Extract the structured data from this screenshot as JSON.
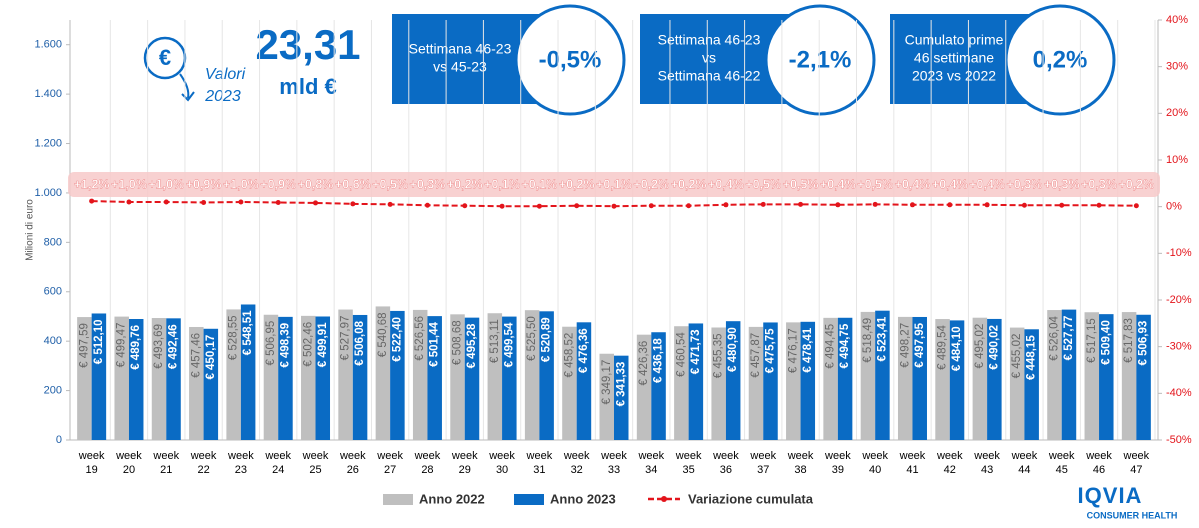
{
  "chart_data": {
    "type": "bar_line",
    "categories": [
      "week 19",
      "week 20",
      "week 21",
      "week 22",
      "week 23",
      "week 24",
      "week 25",
      "week 26",
      "week 27",
      "week 28",
      "week 29",
      "week 30",
      "week 31",
      "week 32",
      "week 33",
      "week 34",
      "week 35",
      "week 36",
      "week 37",
      "week 38",
      "week 39",
      "week 40",
      "week 41",
      "week 42",
      "week 43",
      "week 44",
      "week 45",
      "week 46",
      "week 47"
    ],
    "y_label": "Milioni di euro",
    "ylim": [
      0,
      1700
    ],
    "yticks": [
      0,
      200,
      400,
      600,
      800,
      {
        "value": 1000,
        "label": "1.000"
      },
      {
        "value": 1200,
        "label": "1.200"
      },
      {
        "value": 1400,
        "label": "1.400"
      },
      {
        "value": 1600,
        "label": "1.600"
      }
    ],
    "y2lim": [
      -50,
      40
    ],
    "y2ticks": [
      {
        "value": -50,
        "label": "-50%"
      },
      {
        "value": -40,
        "label": "-40%"
      },
      {
        "value": -30,
        "label": "-30%"
      },
      {
        "value": -20,
        "label": "-20%"
      },
      {
        "value": -10,
        "label": "-10%"
      },
      {
        "value": 0,
        "label": "0%"
      },
      {
        "value": 10,
        "label": "10%"
      },
      {
        "value": 20,
        "label": "20%"
      },
      {
        "value": 30,
        "label": "30%"
      },
      {
        "value": 40,
        "label": "40%"
      }
    ],
    "legend": "bottom",
    "series": [
      {
        "name": "Anno 2022",
        "color": "#bfbfbf",
        "kind": "bar",
        "values": [
          497.59,
          499.47,
          493.69,
          457.46,
          528.55,
          506.95,
          502.46,
          527.97,
          540.68,
          526.56,
          508.68,
          513.11,
          525.5,
          458.52,
          349.17,
          426.36,
          460.54,
          455.35,
          457.87,
          476.17,
          494.45,
          518.49,
          498.27,
          489.54,
          495.02,
          455.02,
          526.04,
          517.15,
          517.83
        ],
        "value_labels": [
          "€ 497,59",
          "€ 499,47",
          "€ 493,69",
          "€ 457,46",
          "€ 528,55",
          "€ 506,95",
          "€ 502,46",
          "€ 527,97",
          "€ 540,68",
          "€ 526,56",
          "€ 508,68",
          "€ 513,11",
          "€ 525,50",
          "€ 458,52",
          "€ 349,17",
          "€ 426,36",
          "€ 460,54",
          "€ 455,35",
          "€ 457,87",
          "€ 476,17",
          "€ 494,45",
          "€ 518,49",
          "€ 498,27",
          "€ 489,54",
          "€ 495,02",
          "€ 455,02",
          "€ 526,04",
          "€ 517,15",
          "€ 517,83"
        ]
      },
      {
        "name": "Anno 2023",
        "color": "#0a6bc4",
        "kind": "bar",
        "values": [
          512.1,
          489.76,
          492.46,
          450.17,
          548.51,
          498.39,
          499.91,
          506.08,
          522.4,
          501.44,
          495.28,
          499.54,
          520.89,
          476.36,
          341.33,
          436.18,
          471.73,
          480.9,
          475.75,
          478.41,
          494.75,
          523.41,
          497.95,
          484.1,
          490.02,
          448.15,
          527.77,
          509.4,
          506.93
        ],
        "value_labels": [
          "€ 512,10",
          "€ 489,76",
          "€ 492,46",
          "€ 450,17",
          "€ 548,51",
          "€ 498,39",
          "€ 499,91",
          "€ 506,08",
          "€ 522,40",
          "€ 501,44",
          "€ 495,28",
          "€ 499,54",
          "€ 520,89",
          "€ 476,36",
          "€ 341,33",
          "€ 436,18",
          "€ 471,73",
          "€ 480,90",
          "€ 475,75",
          "€ 478,41",
          "€ 494,75",
          "€ 523,41",
          "€ 497,95",
          "€ 484,10",
          "€ 490,02",
          "€ 448,15",
          "€ 527,77",
          "€ 509,40",
          "€ 506,93"
        ]
      },
      {
        "name": "Variazione cumulata",
        "color": "#e3141b",
        "kind": "line",
        "axis": "y2",
        "values": [
          1.2,
          1.0,
          1.0,
          0.9,
          1.0,
          0.9,
          0.8,
          0.6,
          0.5,
          0.3,
          0.2,
          0.1,
          0.1,
          0.2,
          0.1,
          0.2,
          0.2,
          0.4,
          0.5,
          0.5,
          0.4,
          0.5,
          0.4,
          0.4,
          0.4,
          0.3,
          0.3,
          0.3,
          0.2
        ],
        "value_labels": [
          "+1,2%",
          "+1,0%",
          "+1,0%",
          "+0,9%",
          "+1,0%",
          "+0,9%",
          "+0,8%",
          "+0,6%",
          "+0,5%",
          "+0,3%",
          "+0,2%",
          "+0,1%",
          "+0,1%",
          "+0,2%",
          "+0,1%",
          "+0,2%",
          "+0,2%",
          "+0,4%",
          "+0,5%",
          "+0,5%",
          "+0,4%",
          "+0,5%",
          "+0,4%",
          "+0,4%",
          "+0,4%",
          "+0,3%",
          "+0,3%",
          "+0,3%",
          "+0,2%"
        ]
      }
    ]
  },
  "header": {
    "total": "23,31",
    "unit": "mld €",
    "icon": "€",
    "subtitle_lines": [
      "Valori",
      "2023"
    ]
  },
  "kpis": [
    {
      "label_lines": [
        "Settimana 46-23",
        "vs 45-23"
      ],
      "value": "-0,5%"
    },
    {
      "label_lines": [
        "Settimana 46-23",
        "vs",
        "Settimana 46-22"
      ],
      "value": "-2,1%"
    },
    {
      "label_lines": [
        "Cumulato prime",
        "46 settimane",
        "2023 vs 2022"
      ],
      "value": "0,2%"
    }
  ],
  "logo": {
    "name": "IQVIA",
    "tagline": "CONSUMER HEALTH"
  }
}
